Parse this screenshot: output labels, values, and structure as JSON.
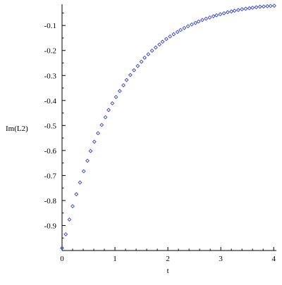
{
  "chart_data": {
    "type": "scatter",
    "title": "",
    "xlabel": "t",
    "ylabel": "Im(L2)",
    "xlim": [
      0,
      4.05
    ],
    "ylim": [
      -1.0,
      -0.015
    ],
    "x_ticks": [
      0,
      1,
      2,
      3,
      4
    ],
    "y_ticks": [
      -0.9,
      -0.8,
      -0.7,
      -0.6,
      -0.5,
      -0.4,
      -0.3,
      -0.2,
      -0.1
    ],
    "x_tick_labels": [
      "0",
      "1",
      "2",
      "3",
      "4"
    ],
    "y_tick_labels": [
      "-0.9",
      "-0.8",
      "-0.7",
      "-0.6",
      "-0.5",
      "-0.4",
      "-0.3",
      "-0.2",
      "-0.1"
    ],
    "grid": false,
    "marker": "diamond",
    "color": "#3344cc",
    "series": [
      {
        "x": [
          0.0,
          0.07,
          0.14,
          0.2,
          0.27,
          0.34,
          0.41,
          0.48,
          0.54,
          0.61,
          0.68,
          0.75,
          0.82,
          0.88,
          0.95,
          1.02,
          1.09,
          1.16,
          1.22,
          1.29,
          1.36,
          1.43,
          1.5,
          1.56,
          1.63,
          1.7,
          1.77,
          1.84,
          1.9,
          1.97,
          2.04,
          2.11,
          2.18,
          2.24,
          2.31,
          2.38,
          2.45,
          2.52,
          2.58,
          2.65,
          2.72,
          2.79,
          2.86,
          2.92,
          2.99,
          3.06,
          3.13,
          3.2,
          3.26,
          3.33,
          3.4,
          3.47,
          3.54,
          3.6,
          3.67,
          3.74,
          3.81,
          3.88,
          3.94,
          4.01
        ],
        "y": [
          -0.99,
          -0.935,
          -0.876,
          -0.823,
          -0.775,
          -0.728,
          -0.683,
          -0.641,
          -0.602,
          -0.565,
          -0.531,
          -0.498,
          -0.467,
          -0.438,
          -0.411,
          -0.386,
          -0.362,
          -0.339,
          -0.318,
          -0.298,
          -0.279,
          -0.262,
          -0.245,
          -0.229,
          -0.215,
          -0.201,
          -0.188,
          -0.176,
          -0.165,
          -0.154,
          -0.144,
          -0.135,
          -0.126,
          -0.118,
          -0.11,
          -0.103,
          -0.096,
          -0.09,
          -0.084,
          -0.078,
          -0.073,
          -0.068,
          -0.063,
          -0.059,
          -0.055,
          -0.051,
          -0.047,
          -0.044,
          -0.041,
          -0.038,
          -0.035,
          -0.033,
          -0.031,
          -0.029,
          -0.027,
          -0.025,
          -0.024,
          -0.023,
          -0.022,
          -0.021
        ]
      }
    ]
  }
}
